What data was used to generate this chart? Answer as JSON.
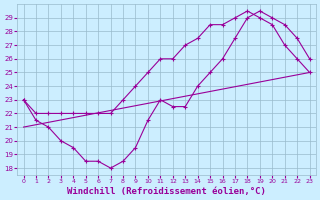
{
  "line1_x": [
    0,
    1,
    2,
    3,
    4,
    5,
    6,
    7,
    8,
    9,
    10,
    11,
    12,
    13,
    14,
    15,
    16,
    17,
    18,
    19,
    20,
    21,
    22,
    23
  ],
  "line1_y": [
    23,
    22,
    22,
    22,
    22,
    22,
    22,
    22,
    23,
    24,
    25,
    26,
    26,
    27,
    27.5,
    28.5,
    28.5,
    29,
    29.5,
    29,
    28.5,
    27,
    26,
    25
  ],
  "line2_x": [
    0,
    1,
    2,
    3,
    4,
    5,
    6,
    7,
    8,
    9,
    10,
    11,
    12,
    13,
    14,
    15,
    16,
    17,
    18,
    19,
    20,
    21,
    22,
    23
  ],
  "line2_y": [
    23,
    21.5,
    21,
    20,
    19.5,
    18.5,
    18.5,
    18,
    18.5,
    19.5,
    21.5,
    23,
    22.5,
    22.5,
    24,
    25,
    26,
    27.5,
    29,
    29.5,
    29,
    28.5,
    27.5,
    26
  ],
  "line3_x": [
    0,
    23
  ],
  "line3_y": [
    21,
    25
  ],
  "bg_color": "#cceeff",
  "line_color": "#990099",
  "grid_color": "#99bbcc",
  "xlabel": "Windchill (Refroidissement éolien,°C)",
  "xlabel_fontsize": 6.5,
  "xtick_labels": [
    "0",
    "1",
    "2",
    "3",
    "4",
    "5",
    "6",
    "7",
    "8",
    "9",
    "10",
    "11",
    "12",
    "13",
    "14",
    "15",
    "16",
    "17",
    "18",
    "19",
    "20",
    "21",
    "22",
    "23"
  ],
  "ytick_labels": [
    "18",
    "19",
    "20",
    "21",
    "22",
    "23",
    "24",
    "25",
    "26",
    "27",
    "28",
    "29"
  ],
  "ylim": [
    17.5,
    30
  ],
  "xlim": [
    -0.5,
    23.5
  ]
}
